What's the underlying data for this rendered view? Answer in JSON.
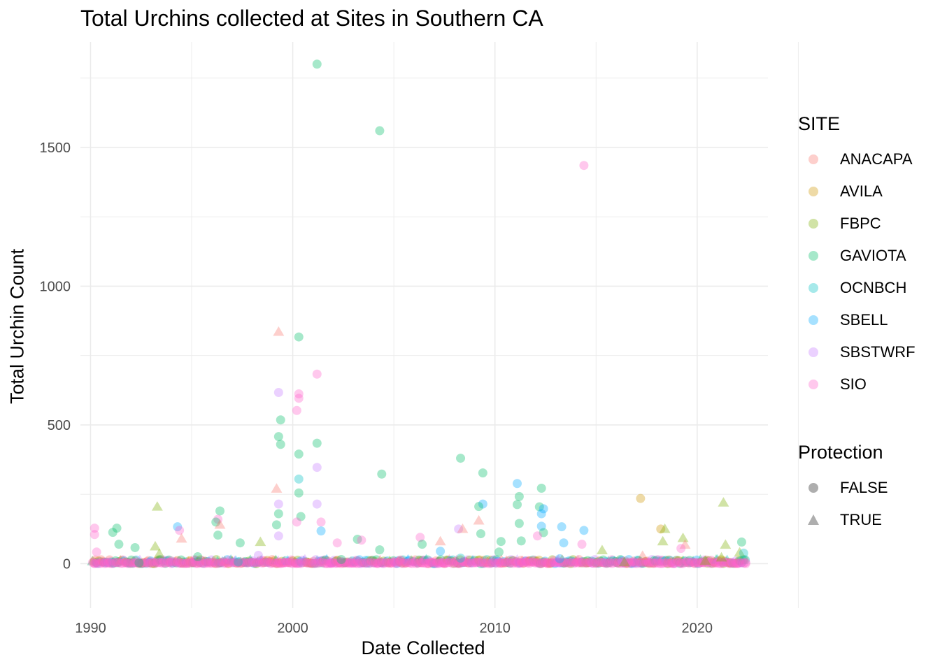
{
  "chart_data": {
    "type": "scatter",
    "title": "Total Urchins collected at Sites in Southern CA",
    "xlabel": "Date Collected",
    "ylabel": "Total Urchin Count",
    "xlim": [
      1989.5,
      2023.5
    ],
    "ylim": [
      -160,
      1880
    ],
    "xticks": [
      1990,
      2000,
      2010,
      2020
    ],
    "yticks": [
      0,
      500,
      1000,
      1500
    ],
    "grid": true,
    "legend_placement": "right",
    "color_legend": {
      "title": "SITE",
      "entries": [
        {
          "name": "ANACAPA",
          "color": "#F8766D"
        },
        {
          "name": "AVILA",
          "color": "#CD9600"
        },
        {
          "name": "FBPC",
          "color": "#7CAE00"
        },
        {
          "name": "GAVIOTA",
          "color": "#00BE67"
        },
        {
          "name": "OCNBCH",
          "color": "#00BFC4"
        },
        {
          "name": "SBELL",
          "color": "#00A9FF"
        },
        {
          "name": "SBSTWRF",
          "color": "#C77CFF"
        },
        {
          "name": "SIO",
          "color": "#FF61CC"
        }
      ]
    },
    "shape_legend": {
      "title": "Protection",
      "entries": [
        {
          "name": "FALSE",
          "shape": "circle"
        },
        {
          "name": "TRUE",
          "shape": "triangle"
        }
      ]
    },
    "points": [
      {
        "site": "GAVIOTA",
        "x": 2001.2,
        "y": 1800,
        "protected": false
      },
      {
        "site": "GAVIOTA",
        "x": 2004.3,
        "y": 1560,
        "protected": false
      },
      {
        "site": "SIO",
        "x": 2014.4,
        "y": 1435,
        "protected": false
      },
      {
        "site": "ANACAPA",
        "x": 1999.3,
        "y": 835,
        "protected": true
      },
      {
        "site": "GAVIOTA",
        "x": 2000.3,
        "y": 817,
        "protected": false
      },
      {
        "site": "SIO",
        "x": 2001.2,
        "y": 683,
        "protected": false
      },
      {
        "site": "SBSTWRF",
        "x": 1999.3,
        "y": 617,
        "protected": false
      },
      {
        "site": "SIO",
        "x": 2000.3,
        "y": 612,
        "protected": false
      },
      {
        "site": "SIO",
        "x": 2000.3,
        "y": 596,
        "protected": false
      },
      {
        "site": "SIO",
        "x": 2000.2,
        "y": 552,
        "protected": false
      },
      {
        "site": "GAVIOTA",
        "x": 1999.4,
        "y": 518,
        "protected": false
      },
      {
        "site": "GAVIOTA",
        "x": 1999.3,
        "y": 458,
        "protected": false
      },
      {
        "site": "GAVIOTA",
        "x": 2001.2,
        "y": 434,
        "protected": false
      },
      {
        "site": "GAVIOTA",
        "x": 1999.4,
        "y": 430,
        "protected": false
      },
      {
        "site": "GAVIOTA",
        "x": 2000.3,
        "y": 395,
        "protected": false
      },
      {
        "site": "GAVIOTA",
        "x": 2008.3,
        "y": 380,
        "protected": false
      },
      {
        "site": "SBSTWRF",
        "x": 2001.2,
        "y": 347,
        "protected": false
      },
      {
        "site": "GAVIOTA",
        "x": 2009.4,
        "y": 327,
        "protected": false
      },
      {
        "site": "GAVIOTA",
        "x": 2004.4,
        "y": 323,
        "protected": false
      },
      {
        "site": "OCNBCH",
        "x": 2000.3,
        "y": 305,
        "protected": false
      },
      {
        "site": "SBELL",
        "x": 2011.1,
        "y": 289,
        "protected": false
      },
      {
        "site": "GAVIOTA",
        "x": 2012.3,
        "y": 272,
        "protected": false
      },
      {
        "site": "ANACAPA",
        "x": 1999.2,
        "y": 270,
        "protected": true
      },
      {
        "site": "GAVIOTA",
        "x": 2000.3,
        "y": 255,
        "protected": false
      },
      {
        "site": "GAVIOTA",
        "x": 2011.2,
        "y": 242,
        "protected": false
      },
      {
        "site": "AVILA",
        "x": 2017.2,
        "y": 235,
        "protected": false
      },
      {
        "site": "FBPC",
        "x": 2021.3,
        "y": 220,
        "protected": true
      },
      {
        "site": "SBSTWRF",
        "x": 1999.3,
        "y": 215,
        "protected": false
      },
      {
        "site": "GAVIOTA",
        "x": 2011.1,
        "y": 213,
        "protected": false
      },
      {
        "site": "SBELL",
        "x": 2009.4,
        "y": 215,
        "protected": false
      },
      {
        "site": "SBSTWRF",
        "x": 2001.2,
        "y": 215,
        "protected": false
      },
      {
        "site": "GAVIOTA",
        "x": 2009.2,
        "y": 206,
        "protected": false
      },
      {
        "site": "FBPC",
        "x": 1993.3,
        "y": 205,
        "protected": true
      },
      {
        "site": "GAVIOTA",
        "x": 2012.2,
        "y": 205,
        "protected": false
      },
      {
        "site": "SBELL",
        "x": 2012.4,
        "y": 198,
        "protected": false
      },
      {
        "site": "GAVIOTA",
        "x": 1996.4,
        "y": 190,
        "protected": false
      },
      {
        "site": "SBELL",
        "x": 2012.3,
        "y": 180,
        "protected": false
      },
      {
        "site": "GAVIOTA",
        "x": 1999.3,
        "y": 180,
        "protected": false
      },
      {
        "site": "GAVIOTA",
        "x": 2000.4,
        "y": 170,
        "protected": false
      },
      {
        "site": "SIO",
        "x": 1996.3,
        "y": 160,
        "protected": false
      },
      {
        "site": "ANACAPA",
        "x": 2009.2,
        "y": 155,
        "protected": true
      },
      {
        "site": "SIO",
        "x": 2001.4,
        "y": 150,
        "protected": false
      },
      {
        "site": "GAVIOTA",
        "x": 1996.2,
        "y": 150,
        "protected": false
      },
      {
        "site": "SIO",
        "x": 2000.2,
        "y": 150,
        "protected": false
      },
      {
        "site": "GAVIOTA",
        "x": 2011.2,
        "y": 145,
        "protected": false
      },
      {
        "site": "ANACAPA",
        "x": 1996.4,
        "y": 140,
        "protected": true
      },
      {
        "site": "GAVIOTA",
        "x": 1999.2,
        "y": 140,
        "protected": false
      },
      {
        "site": "SBELL",
        "x": 2012.3,
        "y": 135,
        "protected": false
      },
      {
        "site": "SBELL",
        "x": 1994.3,
        "y": 133,
        "protected": false
      },
      {
        "site": "SBELL",
        "x": 2013.3,
        "y": 133,
        "protected": false
      },
      {
        "site": "GAVIOTA",
        "x": 1991.3,
        "y": 128,
        "protected": false
      },
      {
        "site": "SIO",
        "x": 1990.2,
        "y": 128,
        "protected": false
      },
      {
        "site": "AVILA",
        "x": 2018.2,
        "y": 125,
        "protected": false
      },
      {
        "site": "FBPC",
        "x": 2018.4,
        "y": 125,
        "protected": true
      },
      {
        "site": "SBSTWRF",
        "x": 2008.2,
        "y": 125,
        "protected": false
      },
      {
        "site": "ANACAPA",
        "x": 2008.4,
        "y": 125,
        "protected": true
      },
      {
        "site": "SBELL",
        "x": 2014.4,
        "y": 120,
        "protected": false
      },
      {
        "site": "SIO",
        "x": 1994.4,
        "y": 120,
        "protected": false
      },
      {
        "site": "SBELL",
        "x": 2001.4,
        "y": 118,
        "protected": false
      },
      {
        "site": "GAVIOTA",
        "x": 1991.1,
        "y": 113,
        "protected": false
      },
      {
        "site": "GAVIOTA",
        "x": 2012.4,
        "y": 112,
        "protected": false
      },
      {
        "site": "GAVIOTA",
        "x": 2009.3,
        "y": 108,
        "protected": false
      },
      {
        "site": "SIO",
        "x": 1990.2,
        "y": 105,
        "protected": false
      },
      {
        "site": "GAVIOTA",
        "x": 1996.3,
        "y": 103,
        "protected": false
      },
      {
        "site": "SIO",
        "x": 2012.1,
        "y": 100,
        "protected": false
      },
      {
        "site": "SBSTWRF",
        "x": 1999.3,
        "y": 100,
        "protected": false
      },
      {
        "site": "SIO",
        "x": 2006.3,
        "y": 95,
        "protected": false
      },
      {
        "site": "FBPC",
        "x": 2019.3,
        "y": 92,
        "protected": true
      },
      {
        "site": "ANACAPA",
        "x": 1994.5,
        "y": 90,
        "protected": true
      },
      {
        "site": "GAVIOTA",
        "x": 2003.2,
        "y": 88,
        "protected": false
      },
      {
        "site": "SIO",
        "x": 2003.4,
        "y": 85,
        "protected": false
      },
      {
        "site": "GAVIOTA",
        "x": 2011.3,
        "y": 82,
        "protected": false
      },
      {
        "site": "GAVIOTA",
        "x": 2010.3,
        "y": 80,
        "protected": false
      },
      {
        "site": "ANACAPA",
        "x": 2007.3,
        "y": 80,
        "protected": true
      },
      {
        "site": "FBPC",
        "x": 2018.3,
        "y": 80,
        "protected": true
      },
      {
        "site": "FBPC",
        "x": 1998.4,
        "y": 78,
        "protected": true
      },
      {
        "site": "GAVIOTA",
        "x": 2022.2,
        "y": 78,
        "protected": false
      },
      {
        "site": "SIO",
        "x": 2002.2,
        "y": 75,
        "protected": false
      },
      {
        "site": "GAVIOTA",
        "x": 1997.4,
        "y": 75,
        "protected": false
      },
      {
        "site": "SBELL",
        "x": 2013.4,
        "y": 75,
        "protected": false
      },
      {
        "site": "GAVIOTA",
        "x": 1991.4,
        "y": 70,
        "protected": false
      },
      {
        "site": "SIO",
        "x": 2014.3,
        "y": 70,
        "protected": false
      },
      {
        "site": "GAVIOTA",
        "x": 2006.4,
        "y": 70,
        "protected": false
      },
      {
        "site": "FBPC",
        "x": 2021.4,
        "y": 68,
        "protected": true
      },
      {
        "site": "ANACAPA",
        "x": 2019.4,
        "y": 68,
        "protected": true
      },
      {
        "site": "FBPC",
        "x": 1993.2,
        "y": 62,
        "protected": true
      },
      {
        "site": "GAVIOTA",
        "x": 1992.2,
        "y": 58,
        "protected": false
      },
      {
        "site": "SIO",
        "x": 2019.2,
        "y": 55,
        "protected": false
      },
      {
        "site": "GAVIOTA",
        "x": 2004.3,
        "y": 50,
        "protected": false
      },
      {
        "site": "FBPC",
        "x": 2015.3,
        "y": 48,
        "protected": true
      },
      {
        "site": "SBELL",
        "x": 2007.3,
        "y": 45,
        "protected": false
      },
      {
        "site": "GAVIOTA",
        "x": 2010.2,
        "y": 42,
        "protected": false
      },
      {
        "site": "SIO",
        "x": 1990.3,
        "y": 42,
        "protected": false
      },
      {
        "site": "FBPC",
        "x": 2022.1,
        "y": 40,
        "protected": true
      },
      {
        "site": "OCNBCH",
        "x": 2022.3,
        "y": 38,
        "protected": false
      },
      {
        "site": "FBPC",
        "x": 1993.4,
        "y": 35,
        "protected": true
      },
      {
        "site": "SBSTWRF",
        "x": 1998.3,
        "y": 30,
        "protected": false
      },
      {
        "site": "ANACAPA",
        "x": 2017.3,
        "y": 28,
        "protected": true
      },
      {
        "site": "GAVIOTA",
        "x": 1995.3,
        "y": 25,
        "protected": false
      },
      {
        "site": "FBPC",
        "x": 2021.2,
        "y": 22,
        "protected": true
      },
      {
        "site": "OCNBCH",
        "x": 2008.3,
        "y": 20,
        "protected": false
      },
      {
        "site": "SBELL",
        "x": 2013.2,
        "y": 18,
        "protected": false
      },
      {
        "site": "GAVIOTA",
        "x": 2002.4,
        "y": 15,
        "protected": false
      },
      {
        "site": "SIO",
        "x": 2005.3,
        "y": 12,
        "protected": false
      },
      {
        "site": "FBPC",
        "x": 2020.4,
        "y": 10,
        "protected": true
      },
      {
        "site": "SBSTWRF",
        "x": 2016.3,
        "y": 8,
        "protected": false
      },
      {
        "site": "OCNBCH",
        "x": 1997.3,
        "y": 6,
        "protected": false
      },
      {
        "site": "FBPC",
        "x": 2016.4,
        "y": 5,
        "protected": true
      },
      {
        "site": "SIO",
        "x": 2011.3,
        "y": 4,
        "protected": false
      },
      {
        "site": "GAVIOTA",
        "x": 1992.4,
        "y": 3,
        "protected": false
      },
      {
        "site": "SIO",
        "x": 1990.2,
        "y": 0,
        "protected": false
      },
      {
        "site": "SIO",
        "x": 2022.4,
        "y": 0,
        "protected": false
      }
    ],
    "baseline_band": {
      "from": 1990.1,
      "to": 2022.4,
      "range": [
        0,
        15
      ]
    }
  }
}
